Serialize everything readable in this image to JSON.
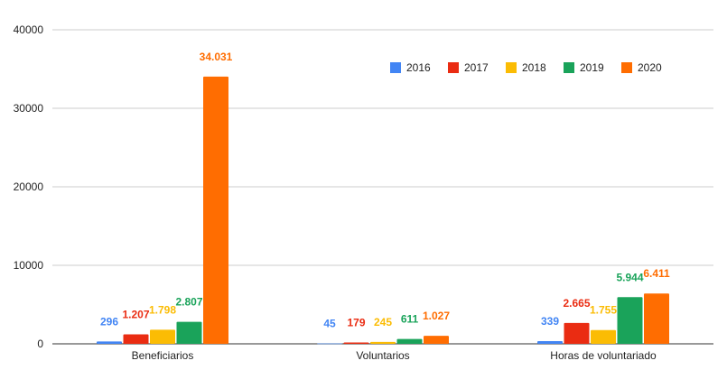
{
  "chart_data": {
    "type": "bar",
    "categories": [
      "Beneficiarios",
      "Voluntarios",
      "Horas de voluntariado"
    ],
    "series": [
      {
        "name": "2016",
        "color": "#4285f4",
        "values": [
          296,
          45,
          339
        ],
        "labels": [
          "296",
          "45",
          "339"
        ]
      },
      {
        "name": "2017",
        "color": "#ea2c12",
        "values": [
          1207,
          179,
          2665
        ],
        "labels": [
          "1.207",
          "179",
          "2.665"
        ]
      },
      {
        "name": "2018",
        "color": "#fbbc04",
        "values": [
          1798,
          245,
          1755
        ],
        "labels": [
          "1.798",
          "245",
          "1.755"
        ]
      },
      {
        "name": "2019",
        "color": "#1aa35a",
        "values": [
          2807,
          611,
          5944
        ],
        "labels": [
          "2.807",
          "611",
          "5.944"
        ]
      },
      {
        "name": "2020",
        "color": "#ff6d01",
        "values": [
          34031,
          1027,
          6411
        ],
        "labels": [
          "34.031",
          "1.027",
          "6.411"
        ]
      }
    ],
    "yticks": [
      0,
      10000,
      20000,
      30000,
      40000
    ],
    "ytick_labels": [
      "0",
      "10000",
      "20000",
      "30000",
      "40000"
    ],
    "ylim": [
      0,
      40000
    ],
    "title": "",
    "xlabel": "",
    "ylabel": "",
    "grid": true,
    "legend_position": "top-right"
  }
}
